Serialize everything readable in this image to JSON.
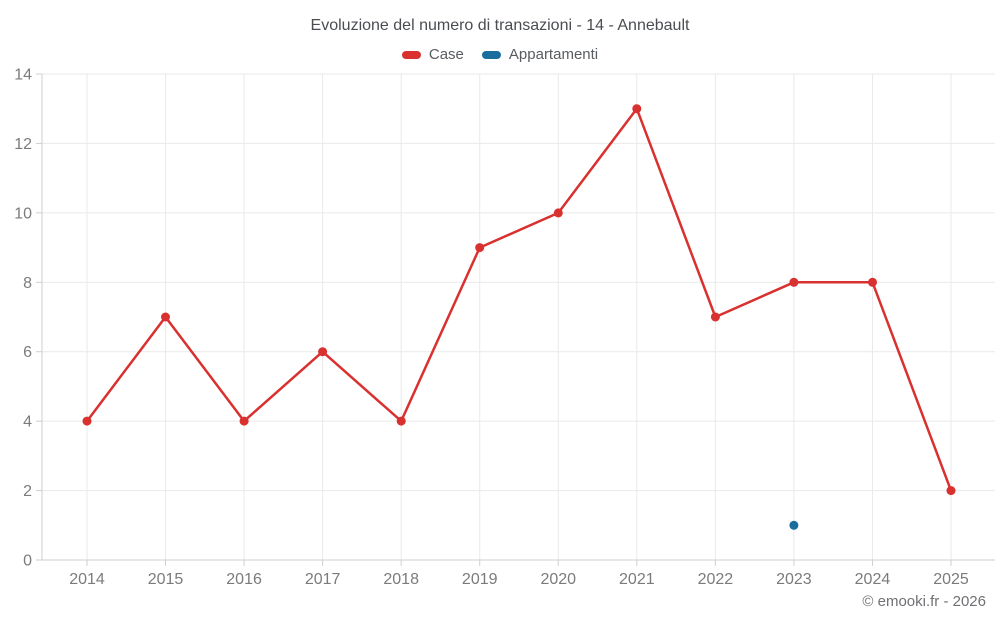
{
  "title": "Evoluzione del numero di transazioni - 14 - Annebault",
  "footer": "© emooki.fr - 2026",
  "legend": [
    {
      "label": "Case",
      "color": "#d8312f"
    },
    {
      "label": "Appartamenti",
      "color": "#1b6d9e"
    }
  ],
  "colors": {
    "case_red": "#d8312f",
    "appartamenti_blue": "#1b6d9e",
    "grid": "#e9e9e9",
    "axis": "#cfcfcf",
    "tick_label": "#7b7b7b",
    "title_text": "#4a4d52",
    "legend_text": "#595c60",
    "footer_text": "#6e7073",
    "background": "#ffffff"
  },
  "chart_data": {
    "type": "line",
    "title": "Evoluzione del numero di transazioni - 14 - Annebault",
    "x": [
      2014,
      2015,
      2016,
      2017,
      2018,
      2019,
      2020,
      2021,
      2022,
      2023,
      2024,
      2025
    ],
    "series": [
      {
        "name": "Case",
        "color": "#d8312f",
        "style": "line+markers",
        "values": [
          4,
          7,
          4,
          6,
          4,
          9,
          10,
          13,
          7,
          8,
          8,
          2
        ]
      },
      {
        "name": "Appartamenti",
        "color": "#1b6d9e",
        "style": "markers",
        "values": [
          null,
          null,
          null,
          null,
          null,
          null,
          null,
          null,
          null,
          1,
          null,
          null
        ]
      }
    ],
    "xlabel": "",
    "ylabel": "",
    "ylim": [
      0,
      14
    ],
    "ytick_step": 2,
    "grid": true,
    "legend_position": "top"
  }
}
